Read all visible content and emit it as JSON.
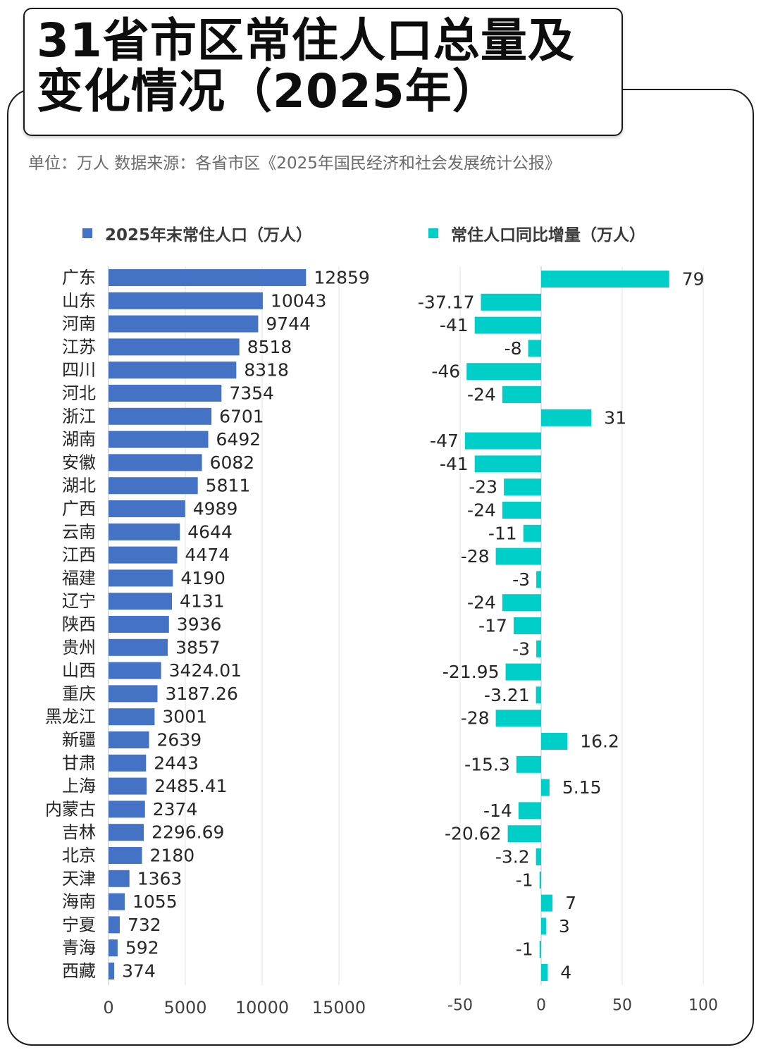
{
  "header": {
    "title": "31省市区常住人口总量及\n变化情况（2025年）",
    "subtitle": "单位：万人    数据来源：各省市区《2025年国民经济和社会发展统计公报》"
  },
  "colors": {
    "left_bar": "#4472C4",
    "right_bar": "#00CEC9"
  },
  "chart_data": [
    {
      "type": "bar",
      "orientation": "horizontal",
      "legend": "2025年末常住人口（万人）",
      "categories": [
        "广东",
        "山东",
        "河南",
        "江苏",
        "四川",
        "河北",
        "浙江",
        "湖南",
        "安徽",
        "湖北",
        "广西",
        "云南",
        "江西",
        "福建",
        "辽宁",
        "陕西",
        "贵州",
        "山西",
        "重庆",
        "黑龙江",
        "新疆",
        "甘肃",
        "上海",
        "内蒙古",
        "吉林",
        "北京",
        "天津",
        "海南",
        "宁夏",
        "青海",
        "西藏"
      ],
      "values": [
        12859,
        10043,
        9744,
        8518,
        8318,
        7354,
        6701,
        6492,
        6082,
        5811,
        4989,
        4644,
        4474,
        4190,
        4131,
        3936,
        3857,
        3424.01,
        3187.26,
        3001,
        2639,
        2443,
        2485.41,
        2374,
        2296.69,
        2180,
        1363,
        1055,
        732,
        592,
        374
      ],
      "labels": [
        "12859",
        "10043",
        "9744",
        "8518",
        "8318",
        "7354",
        "6701",
        "6492",
        "6082",
        "5811",
        "4989",
        "4644",
        "4474",
        "4190",
        "4131",
        "3936",
        "3857",
        "3424.01",
        "3187.26",
        "3001",
        "2639",
        "2443",
        "2485.41",
        "2374",
        "2296.69",
        "2180",
        "1363",
        "1055",
        "732",
        "592",
        "374"
      ],
      "xlim": [
        0,
        15000
      ],
      "xticks": [
        "0",
        "5000",
        "10000",
        "15000"
      ],
      "grid": true
    },
    {
      "type": "bar",
      "orientation": "horizontal",
      "legend": "常住人口同比增量（万人）",
      "categories": [
        "广东",
        "山东",
        "河南",
        "江苏",
        "四川",
        "河北",
        "浙江",
        "湖南",
        "安徽",
        "湖北",
        "广西",
        "云南",
        "江西",
        "福建",
        "辽宁",
        "陕西",
        "贵州",
        "山西",
        "重庆",
        "黑龙江",
        "新疆",
        "甘肃",
        "上海",
        "内蒙古",
        "吉林",
        "北京",
        "天津",
        "海南",
        "宁夏",
        "青海",
        "西藏"
      ],
      "values": [
        79,
        -37.17,
        -41,
        -8,
        -46,
        -24,
        31,
        -47,
        -41,
        -23,
        -24,
        -11,
        -28,
        -3,
        -24,
        -17,
        -3,
        -21.95,
        -3.21,
        -28,
        16.2,
        -15.3,
        5.15,
        -14,
        -20.62,
        -3.2,
        -1,
        7,
        3,
        -1,
        4
      ],
      "labels": [
        "79",
        "-37.17",
        "-41",
        "-8",
        "-46",
        "-24",
        "31",
        "-47",
        "-41",
        "-23",
        "-24",
        "-11",
        "-28",
        "-3",
        "-24",
        "-17",
        "-3",
        "-21.95",
        "-3.21",
        "-28",
        "16.2",
        "-15.3",
        "5.15",
        "-14",
        "-20.62",
        "-3.2",
        "-1",
        "7",
        "3",
        "-1",
        "4"
      ],
      "xlim": [
        -50,
        100
      ],
      "xticks": [
        "-50",
        "0",
        "50",
        "100"
      ],
      "grid": true
    }
  ]
}
